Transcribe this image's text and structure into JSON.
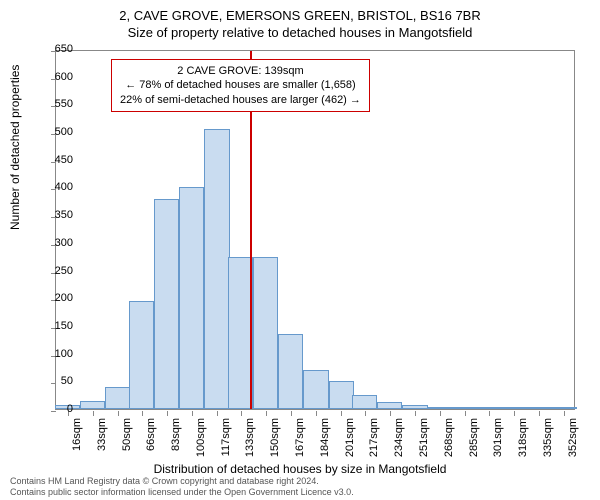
{
  "title": "2, CAVE GROVE, EMERSONS GREEN, BRISTOL, BS16 7BR",
  "subtitle": "Size of property relative to detached houses in Mangotsfield",
  "ylabel": "Number of detached properties",
  "xlabel": "Distribution of detached houses by size in Mangotsfield",
  "chart": {
    "type": "histogram",
    "ylim": [
      0,
      650
    ],
    "ytick_step": 50,
    "bar_color": "#c9dcf0",
    "bar_border": "#6699cc",
    "ref_line_color": "#cc0000",
    "ref_line_x": 139,
    "background": "#ffffff",
    "xtick_step": 17,
    "xmin": 8,
    "xmax": 360,
    "xticks": [
      "16sqm",
      "33sqm",
      "50sqm",
      "66sqm",
      "83sqm",
      "100sqm",
      "117sqm",
      "133sqm",
      "150sqm",
      "167sqm",
      "184sqm",
      "201sqm",
      "217sqm",
      "234sqm",
      "251sqm",
      "268sqm",
      "285sqm",
      "301sqm",
      "318sqm",
      "335sqm",
      "352sqm"
    ],
    "bins": [
      {
        "x": 16,
        "v": 8
      },
      {
        "x": 33,
        "v": 15
      },
      {
        "x": 50,
        "v": 40
      },
      {
        "x": 66,
        "v": 195
      },
      {
        "x": 83,
        "v": 380
      },
      {
        "x": 100,
        "v": 400
      },
      {
        "x": 117,
        "v": 505
      },
      {
        "x": 133,
        "v": 275
      },
      {
        "x": 150,
        "v": 275
      },
      {
        "x": 167,
        "v": 135
      },
      {
        "x": 184,
        "v": 70
      },
      {
        "x": 201,
        "v": 50
      },
      {
        "x": 217,
        "v": 25
      },
      {
        "x": 234,
        "v": 12
      },
      {
        "x": 251,
        "v": 8
      },
      {
        "x": 268,
        "v": 4
      },
      {
        "x": 285,
        "v": 3
      },
      {
        "x": 301,
        "v": 2
      },
      {
        "x": 318,
        "v": 1
      },
      {
        "x": 335,
        "v": 3
      },
      {
        "x": 352,
        "v": 1
      }
    ]
  },
  "info_box": {
    "border_color": "#cc0000",
    "line1": "2 CAVE GROVE: 139sqm",
    "line2": "← 78% of detached houses are smaller (1,658)",
    "line3": "22% of semi-detached houses are larger (462) →"
  },
  "footer": {
    "line1": "Contains HM Land Registry data © Crown copyright and database right 2024.",
    "line2": "Contains public sector information licensed under the Open Government Licence v3.0."
  }
}
